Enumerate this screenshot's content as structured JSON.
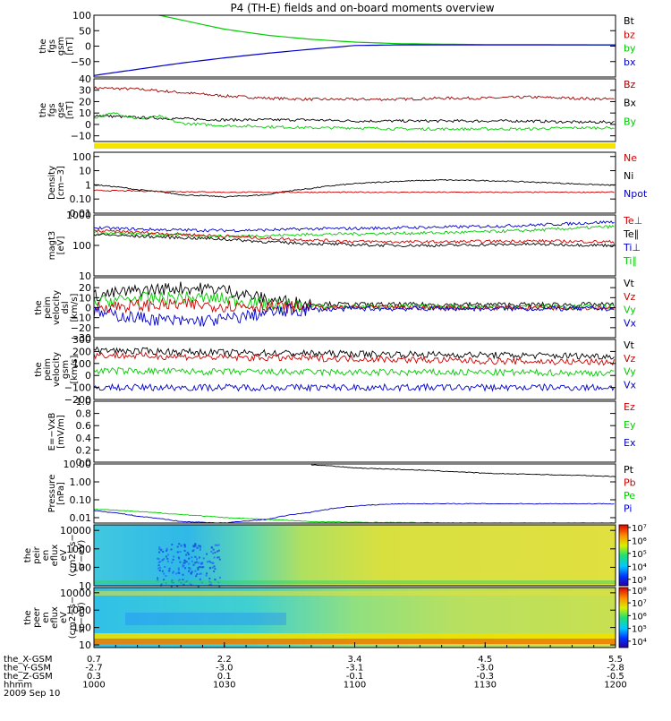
{
  "title": "P4 (TH-E) fields and on-board moments overview",
  "x_axis": {
    "rows": [
      {
        "label": "the_X-GSM",
        "values": [
          "0.7",
          "2.2",
          "3.4",
          "4.5",
          "5.5"
        ]
      },
      {
        "label": "the_Y-GSM",
        "values": [
          "-2.7",
          "-3.0",
          "-3.1",
          "-3.0",
          "-2.8"
        ]
      },
      {
        "label": "the_Z-GSM",
        "values": [
          "0.3",
          "0.1",
          "-0.1",
          "-0.3",
          "-0.5"
        ]
      },
      {
        "label": "hhmm",
        "values": [
          "1000",
          "1030",
          "1100",
          "1130",
          "1200"
        ]
      }
    ],
    "date": "2009 Sep 10"
  },
  "colors": {
    "black": "#000000",
    "red": "#cc0000",
    "darkred": "#990000",
    "green": "#00cc00",
    "blue": "#0000cc"
  },
  "chart_data": [
    {
      "id": "fgs_gsm",
      "type": "line",
      "ylabel": [
        "the",
        "fgs",
        "gsm",
        "[nT]"
      ],
      "yscale": "linear",
      "ylim": [
        -100,
        100
      ],
      "ticks": [
        "100",
        "50",
        "0",
        "−50"
      ],
      "tick_values": [
        100,
        50,
        0,
        -50
      ],
      "legend": [
        {
          "name": "Bt",
          "color": "#000000"
        },
        {
          "name": "bz",
          "color": "#cc0000"
        },
        {
          "name": "by",
          "color": "#00cc00"
        },
        {
          "name": "bx",
          "color": "#0000cc"
        }
      ],
      "series": [
        {
          "name": "by",
          "color": "#00cc00",
          "x": [
            1015,
            1020,
            1030,
            1040,
            1050,
            1100,
            1110,
            1130,
            1200
          ],
          "y": [
            100,
            85,
            55,
            35,
            22,
            13,
            8,
            5,
            4
          ]
        },
        {
          "name": "bx",
          "color": "#0000cc",
          "x": [
            1000,
            1010,
            1020,
            1030,
            1040,
            1050,
            1100,
            1110,
            1130,
            1200
          ],
          "y": [
            -95,
            -75,
            -55,
            -38,
            -23,
            -10,
            2,
            4,
            4,
            4
          ]
        }
      ]
    },
    {
      "id": "fgs_gse",
      "type": "line",
      "ylabel": [
        "the",
        "fgs",
        "gse",
        "[nT]"
      ],
      "yscale": "linear",
      "ylim": [
        -15,
        40
      ],
      "ticks": [
        "40",
        "30",
        "20",
        "10",
        "0",
        "−10"
      ],
      "tick_values": [
        40,
        30,
        20,
        10,
        0,
        -10
      ],
      "legend": [
        {
          "name": "Bz",
          "color": "#990000"
        },
        {
          "name": "Bx",
          "color": "#000000"
        },
        {
          "name": "By",
          "color": "#00cc00"
        }
      ],
      "series": [
        {
          "name": "Bz",
          "color": "#990000",
          "x": [
            1000,
            1010,
            1020,
            1030,
            1040,
            1050,
            1100,
            1110,
            1120,
            1130,
            1140,
            1150,
            1200
          ],
          "y": [
            32,
            31,
            28,
            25,
            23,
            22,
            22,
            22,
            23,
            23,
            24,
            23,
            22
          ]
        },
        {
          "name": "Bx",
          "color": "#000000",
          "x": [
            1000,
            1010,
            1020,
            1030,
            1040,
            1050,
            1100,
            1110,
            1120,
            1130,
            1140,
            1150,
            1200
          ],
          "y": [
            8,
            6,
            5,
            4,
            4,
            4,
            3,
            3,
            3,
            3,
            3,
            2,
            2
          ]
        },
        {
          "name": "By",
          "color": "#00cc00",
          "x": [
            1000,
            1005,
            1010,
            1015,
            1020,
            1030,
            1040,
            1050,
            1100,
            1110,
            1120,
            1130,
            1140,
            1150,
            1200
          ],
          "y": [
            6,
            10,
            5,
            7,
            1,
            -1,
            -2,
            -3,
            -3,
            -4,
            -4,
            -4,
            -4,
            -3,
            -3
          ]
        }
      ]
    },
    {
      "id": "density",
      "type": "line",
      "ylabel": [
        "Density",
        "[cm−3]"
      ],
      "yscale": "log",
      "ylim": [
        0.01,
        200
      ],
      "ticks": [
        "100",
        "10",
        "1",
        "0.10",
        "0.01"
      ],
      "tick_values": [
        100,
        10,
        1,
        0.1,
        0.01
      ],
      "legend": [
        {
          "name": "Ne",
          "color": "#cc0000"
        },
        {
          "name": "Ni",
          "color": "#000000"
        },
        {
          "name": "Npot",
          "color": "#0000cc"
        }
      ],
      "series": [
        {
          "name": "Ni",
          "color": "#000000",
          "x": [
            1000,
            1010,
            1020,
            1030,
            1040,
            1050,
            1100,
            1110,
            1120,
            1130,
            1140,
            1150,
            1200
          ],
          "y": [
            1.0,
            0.45,
            0.2,
            0.14,
            0.2,
            0.55,
            1.2,
            1.8,
            2.2,
            2.0,
            1.6,
            1.2,
            0.9
          ]
        },
        {
          "name": "Ne",
          "color": "#cc0000",
          "x": [
            1000,
            1015,
            1030,
            1045,
            1100,
            1130,
            1200
          ],
          "y": [
            0.4,
            0.35,
            0.3,
            0.3,
            0.3,
            0.3,
            0.3
          ]
        }
      ]
    },
    {
      "id": "magt3",
      "type": "line",
      "ylabel": [
        "magt3",
        "[eV]"
      ],
      "yscale": "log",
      "ylim": [
        10,
        1000
      ],
      "ticks": [
        "1000",
        "100",
        "10"
      ],
      "tick_values": [
        1000,
        100,
        10
      ],
      "legend": [
        {
          "name": "Te⊥",
          "color": "#cc0000"
        },
        {
          "name": "Te∥",
          "color": "#000000"
        },
        {
          "name": "Ti⊥",
          "color": "#0000cc"
        },
        {
          "name": "Ti∥",
          "color": "#00cc00"
        }
      ],
      "series": [
        {
          "name": "Ti⊥",
          "color": "#0000cc",
          "x": [
            1000,
            1010,
            1020,
            1030,
            1040,
            1050,
            1100,
            1110,
            1120,
            1130,
            1140,
            1150,
            1200
          ],
          "y": [
            380,
            340,
            320,
            310,
            320,
            350,
            360,
            380,
            400,
            420,
            460,
            520,
            600
          ]
        },
        {
          "name": "Ti∥",
          "color": "#00cc00",
          "x": [
            1000,
            1010,
            1020,
            1030,
            1040,
            1050,
            1100,
            1110,
            1120,
            1130,
            1140,
            1150,
            1200
          ],
          "y": [
            260,
            230,
            220,
            200,
            210,
            230,
            240,
            250,
            260,
            280,
            310,
            360,
            420
          ]
        },
        {
          "name": "Te⊥",
          "color": "#cc0000",
          "x": [
            1000,
            1010,
            1020,
            1030,
            1040,
            1050,
            1100,
            1110,
            1120,
            1130,
            1140,
            1150,
            1200
          ],
          "y": [
            300,
            270,
            230,
            200,
            170,
            150,
            135,
            130,
            130,
            135,
            140,
            135,
            130
          ]
        },
        {
          "name": "Te∥",
          "color": "#000000",
          "x": [
            1000,
            1010,
            1020,
            1030,
            1040,
            1050,
            1100,
            1110,
            1120,
            1130,
            1140,
            1150,
            1200
          ],
          "y": [
            230,
            200,
            180,
            160,
            130,
            115,
            105,
            100,
            100,
            105,
            110,
            105,
            100
          ]
        }
      ]
    },
    {
      "id": "peim_dsl",
      "type": "line",
      "ylabel": [
        "the",
        "peim",
        "velocity",
        "dsl",
        "[km/s]"
      ],
      "yscale": "linear",
      "ylim": [
        -30,
        30
      ],
      "ticks": [
        "20",
        "10",
        "0",
        "−10",
        "−20",
        "−30"
      ],
      "tick_values": [
        20,
        10,
        0,
        -10,
        -20,
        -30
      ],
      "legend": [
        {
          "name": "Vt",
          "color": "#000000"
        },
        {
          "name": "Vz",
          "color": "#cc0000"
        },
        {
          "name": "Vy",
          "color": "#00cc00"
        },
        {
          "name": "Vx",
          "color": "#0000cc"
        }
      ],
      "series": [
        {
          "name": "Vt",
          "color": "#000000",
          "x": [
            1000,
            1010,
            1020,
            1030,
            1040,
            1050,
            1100,
            1130,
            1200
          ],
          "y": [
            12,
            17,
            20,
            18,
            8,
            4,
            3,
            3,
            3
          ]
        },
        {
          "name": "Vy",
          "color": "#00cc00",
          "x": [
            1000,
            1010,
            1020,
            1030,
            1040,
            1050,
            1100,
            1130,
            1200
          ],
          "y": [
            6,
            9,
            10,
            9,
            3,
            1,
            1,
            1,
            1
          ]
        },
        {
          "name": "Vz",
          "color": "#cc0000",
          "x": [
            1000,
            1010,
            1020,
            1030,
            1040,
            1050,
            1100,
            1130,
            1200
          ],
          "y": [
            1,
            2,
            3,
            2,
            1,
            0,
            0,
            0,
            0
          ]
        },
        {
          "name": "Vx",
          "color": "#0000cc",
          "x": [
            1000,
            1010,
            1020,
            1030,
            1040,
            1050,
            1100,
            1130,
            1200
          ],
          "y": [
            -5,
            -10,
            -14,
            -12,
            -5,
            -2,
            -1,
            -1,
            -1
          ]
        }
      ]
    },
    {
      "id": "peim_gsm",
      "type": "line",
      "ylabel": [
        "the",
        "peim",
        "velocity",
        "gsm",
        "[km/s]"
      ],
      "yscale": "linear",
      "ylim": [
        -200,
        300
      ],
      "ticks": [
        "300",
        "200",
        "100",
        "0",
        "−100",
        "−200"
      ],
      "tick_values": [
        300,
        200,
        100,
        0,
        -100,
        -200
      ],
      "legend": [
        {
          "name": "Vt",
          "color": "#000000"
        },
        {
          "name": "Vz",
          "color": "#cc0000"
        },
        {
          "name": "Vy",
          "color": "#00cc00"
        },
        {
          "name": "Vx",
          "color": "#0000cc"
        }
      ],
      "series": [
        {
          "name": "Vt",
          "color": "#000000",
          "x": [
            1000,
            1030,
            1100,
            1130,
            1200
          ],
          "y": [
            210,
            190,
            180,
            170,
            160
          ]
        },
        {
          "name": "Vz",
          "color": "#cc0000",
          "x": [
            1000,
            1030,
            1100,
            1130,
            1200
          ],
          "y": [
            170,
            150,
            140,
            120,
            110
          ]
        },
        {
          "name": "Vy",
          "color": "#00cc00",
          "x": [
            1000,
            1030,
            1100,
            1130,
            1200
          ],
          "y": [
            40,
            30,
            25,
            25,
            20
          ]
        },
        {
          "name": "Vx",
          "color": "#0000cc",
          "x": [
            1000,
            1030,
            1100,
            1130,
            1200
          ],
          "y": [
            -100,
            -100,
            -100,
            -100,
            -100
          ]
        }
      ]
    },
    {
      "id": "efield",
      "type": "line",
      "ylabel": [
        "E=−VxB",
        "[mV/m]"
      ],
      "yscale": "linear",
      "ylim": [
        0,
        1
      ],
      "ticks": [
        "1.0",
        "0.8",
        "0.6",
        "0.4",
        "0.2",
        "0.0"
      ],
      "tick_values": [
        1.0,
        0.8,
        0.6,
        0.4,
        0.2,
        0.0
      ],
      "legend": [
        {
          "name": "Ez",
          "color": "#cc0000"
        },
        {
          "name": "Ey",
          "color": "#00cc00"
        },
        {
          "name": "Ex",
          "color": "#0000cc"
        }
      ],
      "series": []
    },
    {
      "id": "pressure",
      "type": "line",
      "ylabel": [
        "Pressure",
        "[nPa]"
      ],
      "yscale": "log",
      "ylim": [
        0.005,
        10
      ],
      "ticks": [
        "10.00",
        "1.00",
        "0.10",
        "0.01"
      ],
      "tick_values": [
        10,
        1,
        0.1,
        0.01
      ],
      "legend": [
        {
          "name": "Pt",
          "color": "#000000"
        },
        {
          "name": "Pb",
          "color": "#cc0000"
        },
        {
          "name": "Pe",
          "color": "#00cc00"
        },
        {
          "name": "Pi",
          "color": "#0000cc"
        }
      ],
      "series": [
        {
          "name": "Pt",
          "color": "#000000",
          "x": [
            1050,
            1100,
            1130,
            1200
          ],
          "y": [
            9,
            6,
            3,
            2
          ]
        },
        {
          "name": "Pi",
          "color": "#0000cc",
          "x": [
            1000,
            1010,
            1020,
            1030,
            1040,
            1050,
            1100,
            1110,
            1130,
            1200
          ],
          "y": [
            0.025,
            0.012,
            0.006,
            0.005,
            0.008,
            0.02,
            0.045,
            0.06,
            0.06,
            0.06
          ]
        },
        {
          "name": "Pe",
          "color": "#00cc00",
          "x": [
            1000,
            1010,
            1020,
            1030,
            1040,
            1050,
            1100,
            1130,
            1200
          ],
          "y": [
            0.03,
            0.022,
            0.015,
            0.01,
            0.008,
            0.006,
            0.0055,
            0.005,
            0.005
          ]
        }
      ]
    },
    {
      "id": "peir_spec",
      "type": "heatmap",
      "ylabel": [
        "the",
        "peir",
        "en",
        "eflux",
        "eV",
        "(cm2−s−",
        "sr−eV)"
      ],
      "yscale": "log",
      "ylim": [
        10,
        20000
      ],
      "ticks": [
        "10000",
        "1000",
        "100",
        "10"
      ],
      "tick_values": [
        10000,
        1000,
        100,
        10
      ],
      "colorbar_ticks": [
        "10⁷",
        "10⁶",
        "10⁵",
        "10⁴",
        "10³"
      ],
      "colorbar_values": [
        7,
        6,
        5,
        4,
        3
      ]
    },
    {
      "id": "peer_spec",
      "type": "heatmap",
      "ylabel": [
        "the",
        "peer",
        "en",
        "eflux",
        "eV",
        "(cm2−s−",
        "sr−eV)"
      ],
      "yscale": "log",
      "ylim": [
        7,
        20000
      ],
      "ticks": [
        "10000",
        "1000",
        "100",
        "10"
      ],
      "tick_values": [
        10000,
        1000,
        100,
        10
      ],
      "colorbar_ticks": [
        "10⁸",
        "10⁷",
        "10⁶",
        "10⁵",
        "10⁴"
      ],
      "colorbar_values": [
        8,
        7,
        6,
        5,
        4
      ]
    }
  ]
}
